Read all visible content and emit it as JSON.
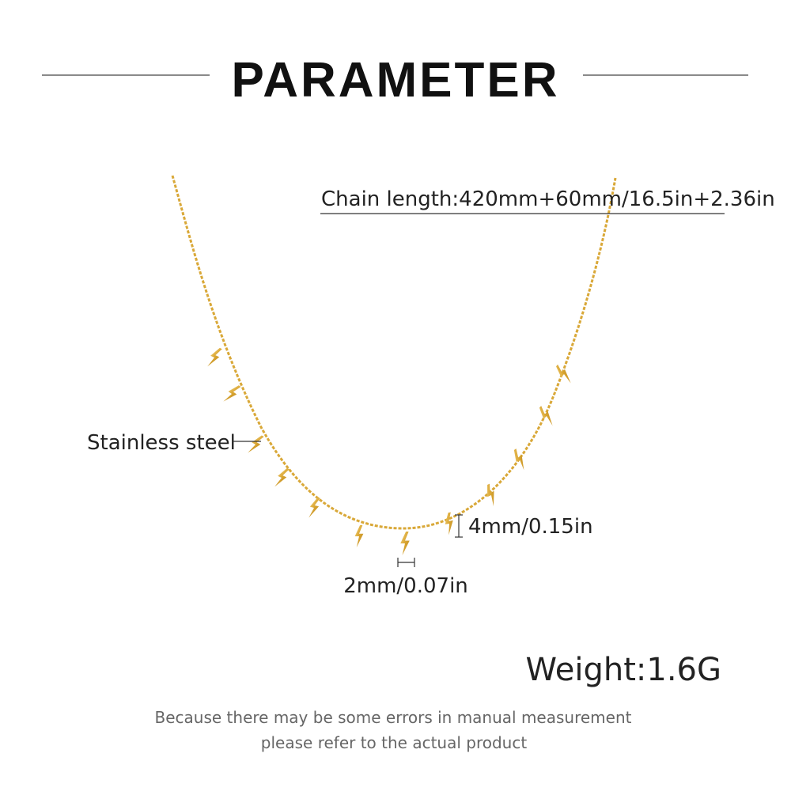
{
  "header": {
    "title": "PARAMETER"
  },
  "labels": {
    "chain_length": "Chain length:420mm+60mm/16.5in+2.36in",
    "material": "Stainless steel",
    "pendant_height": "4mm/0.15in",
    "pendant_width": "2mm/0.07in",
    "weight": "Weight:1.6G"
  },
  "note": {
    "line1": "Because there may be some errors in manual measurement",
    "line2": "please refer to the actual product"
  }
}
